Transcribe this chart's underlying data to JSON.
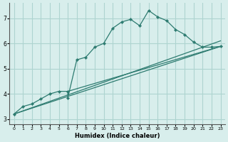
{
  "xlabel": "Humidex (Indice chaleur)",
  "bg_color": "#d8eeec",
  "grid_color": "#aed4d0",
  "line_color": "#2d7b70",
  "xlim": [
    -0.5,
    23.5
  ],
  "ylim": [
    2.8,
    7.6
  ],
  "xticks": [
    0,
    1,
    2,
    3,
    4,
    5,
    6,
    7,
    8,
    9,
    10,
    11,
    12,
    13,
    14,
    15,
    16,
    17,
    18,
    19,
    20,
    21,
    22,
    23
  ],
  "yticks": [
    3,
    4,
    5,
    6,
    7
  ],
  "curve1_x": [
    0,
    1,
    2,
    3,
    4,
    5,
    6,
    6,
    7,
    8,
    9,
    10,
    11,
    12,
    13,
    14,
    15,
    16,
    17,
    18,
    19,
    20,
    21,
    22,
    23
  ],
  "curve1_y": [
    3.2,
    3.5,
    3.6,
    3.8,
    4.0,
    4.1,
    4.1,
    3.85,
    5.35,
    5.45,
    5.85,
    6.0,
    6.6,
    6.85,
    6.95,
    6.7,
    7.3,
    7.05,
    6.9,
    6.55,
    6.35,
    6.05,
    5.85,
    5.85,
    5.88
  ],
  "line2_x": [
    0,
    23
  ],
  "line2_y": [
    3.2,
    5.88
  ],
  "line3_x": [
    0,
    23
  ],
  "line3_y": [
    3.2,
    6.1
  ],
  "line4_x": [
    6,
    23
  ],
  "line4_y": [
    4.1,
    5.88
  ]
}
